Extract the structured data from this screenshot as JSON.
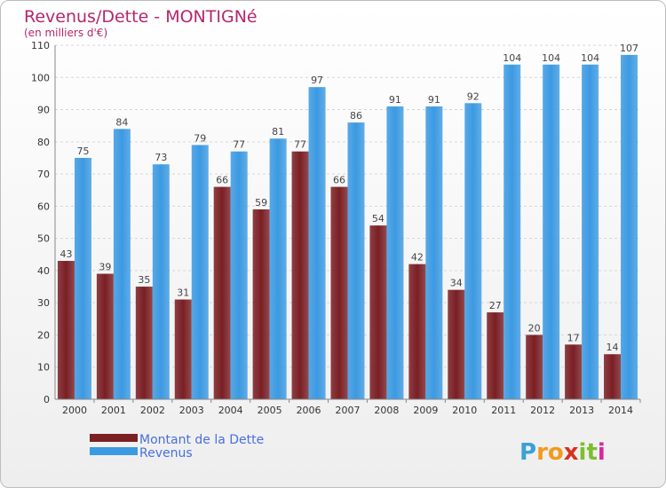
{
  "chart_data": {
    "type": "bar",
    "title": "Revenus/Dette - MONTIGNé",
    "subtitle": "(en milliers d'€)",
    "categories": [
      "2000",
      "2001",
      "2002",
      "2003",
      "2004",
      "2005",
      "2006",
      "2007",
      "2008",
      "2009",
      "2010",
      "2011",
      "2012",
      "2013",
      "2014"
    ],
    "series": [
      {
        "name": "Montant de la Dette",
        "color": "#7a1f24",
        "values": [
          43,
          39,
          35,
          31,
          66,
          59,
          77,
          66,
          54,
          42,
          34,
          27,
          20,
          17,
          14
        ]
      },
      {
        "name": "Revenus",
        "color": "#3c9ae2",
        "values": [
          75,
          84,
          73,
          79,
          77,
          81,
          97,
          86,
          91,
          91,
          92,
          104,
          104,
          104,
          107
        ]
      }
    ],
    "ylim": [
      0,
      110
    ],
    "yticks": [
      0,
      10,
      20,
      30,
      40,
      50,
      60,
      70,
      80,
      90,
      100,
      110
    ],
    "grid": true,
    "legend_position": "bottom-left"
  },
  "logo": {
    "letters": [
      "P",
      "r",
      "o",
      "x",
      "i",
      "t",
      "i"
    ],
    "colors": [
      "#3aa0d8",
      "#f29a1d",
      "#f29a1d",
      "#d6331f",
      "#7cbf2d",
      "#7cbf2d",
      "#d8289a"
    ]
  }
}
